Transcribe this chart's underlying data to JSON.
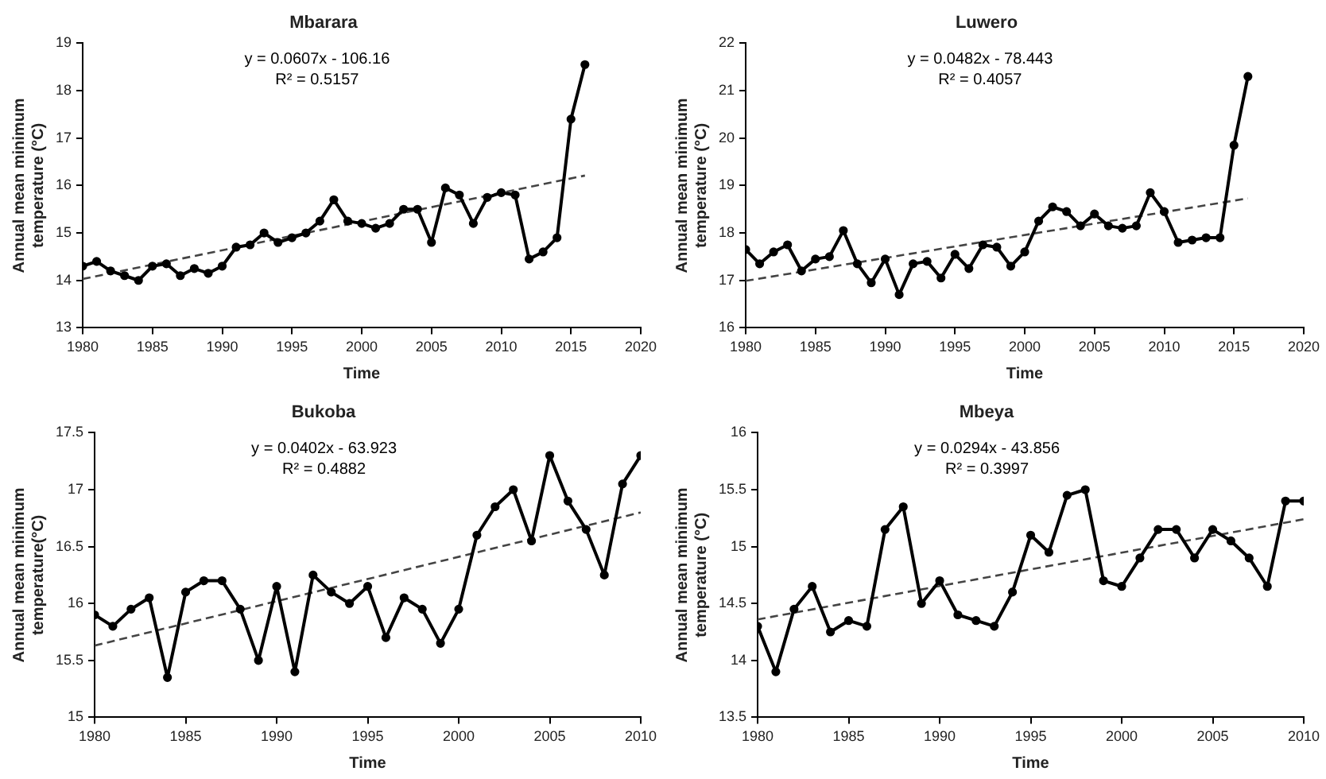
{
  "chart_data": [
    {
      "type": "line",
      "title": "Mbarara",
      "xlabel": "Time",
      "ylabel": "Annual mean minimum temperature (°C)",
      "xlim": [
        1980,
        2020
      ],
      "xticks": [
        1980,
        1985,
        1990,
        1995,
        2000,
        2005,
        2010,
        2015,
        2020
      ],
      "ylim": [
        13,
        19
      ],
      "yticks": [
        13,
        14,
        15,
        16,
        17,
        18,
        19
      ],
      "grid": false,
      "legend": false,
      "annotations": [
        "y = 0.0607x - 106.16",
        "R² = 0.5157"
      ],
      "series": [
        {
          "type": "line",
          "color": "#000000",
          "marker": "circle",
          "line_style": "solid",
          "x": [
            1980,
            1981,
            1982,
            1983,
            1984,
            1985,
            1986,
            1987,
            1988,
            1989,
            1990,
            1991,
            1992,
            1993,
            1994,
            1995,
            1996,
            1997,
            1998,
            1999,
            2000,
            2001,
            2002,
            2003,
            2004,
            2005,
            2006,
            2007,
            2008,
            2009,
            2010,
            2011,
            2012,
            2013,
            2014,
            2015,
            2016
          ],
          "values": [
            14.3,
            14.4,
            14.2,
            14.1,
            14.0,
            14.3,
            14.35,
            14.1,
            14.25,
            14.15,
            14.3,
            14.7,
            14.75,
            15.0,
            14.8,
            14.9,
            15.0,
            15.25,
            15.7,
            15.25,
            15.2,
            15.1,
            15.2,
            15.5,
            15.5,
            14.8,
            15.95,
            15.8,
            15.2,
            15.75,
            15.85,
            15.8,
            14.45,
            14.6,
            14.9,
            17.4,
            18.55
          ]
        },
        {
          "type": "line",
          "color": "#444444",
          "marker": "none",
          "line_style": "dashed",
          "x": [
            1980,
            2016
          ],
          "values": [
            14.03,
            16.21
          ]
        }
      ]
    },
    {
      "type": "line",
      "title": "Luwero",
      "xlabel": "Time",
      "ylabel": "Annual mean minimum temperature (°C)",
      "xlim": [
        1980,
        2020
      ],
      "xticks": [
        1980,
        1985,
        1990,
        1995,
        2000,
        2005,
        2010,
        2015,
        2020
      ],
      "ylim": [
        16,
        22
      ],
      "yticks": [
        16,
        17,
        18,
        19,
        20,
        21,
        22
      ],
      "grid": false,
      "legend": false,
      "annotations": [
        "y = 0.0482x - 78.443",
        "R² = 0.4057"
      ],
      "series": [
        {
          "type": "line",
          "color": "#000000",
          "marker": "circle",
          "line_style": "solid",
          "x": [
            1980,
            1981,
            1982,
            1983,
            1984,
            1985,
            1986,
            1987,
            1988,
            1989,
            1990,
            1991,
            1992,
            1993,
            1994,
            1995,
            1996,
            1997,
            1998,
            1999,
            2000,
            2001,
            2002,
            2003,
            2004,
            2005,
            2006,
            2007,
            2008,
            2009,
            2010,
            2011,
            2012,
            2013,
            2014,
            2015,
            2016
          ],
          "values": [
            17.65,
            17.35,
            17.6,
            17.75,
            17.2,
            17.45,
            17.5,
            18.05,
            17.35,
            16.95,
            17.45,
            16.7,
            17.35,
            17.4,
            17.05,
            17.55,
            17.25,
            17.75,
            17.7,
            17.3,
            17.6,
            18.25,
            18.55,
            18.45,
            18.15,
            18.4,
            18.15,
            18.1,
            18.15,
            18.85,
            18.45,
            17.8,
            17.85,
            17.9,
            17.9,
            19.85,
            21.3
          ]
        },
        {
          "type": "line",
          "color": "#444444",
          "marker": "none",
          "line_style": "dashed",
          "x": [
            1980,
            2016
          ],
          "values": [
            16.99,
            18.73
          ]
        }
      ]
    },
    {
      "type": "line",
      "title": "Bukoba",
      "xlabel": "Time",
      "ylabel": "Annual mean minimum temperature(°C)",
      "xlim": [
        1980,
        2010
      ],
      "xticks": [
        1980,
        1985,
        1990,
        1995,
        2000,
        2005,
        2010
      ],
      "ylim": [
        15,
        17.5
      ],
      "yticks": [
        15,
        15.5,
        16,
        16.5,
        17,
        17.5
      ],
      "grid": false,
      "legend": false,
      "annotations": [
        "y = 0.0402x - 63.923",
        "R² = 0.4882"
      ],
      "series": [
        {
          "type": "line",
          "color": "#000000",
          "marker": "circle",
          "line_style": "solid",
          "x": [
            1980,
            1981,
            1982,
            1983,
            1984,
            1985,
            1986,
            1987,
            1988,
            1989,
            1990,
            1991,
            1992,
            1993,
            1994,
            1995,
            1996,
            1997,
            1998,
            1999,
            2000,
            2001,
            2002,
            2003,
            2004,
            2005,
            2006,
            2007,
            2008,
            2009,
            2010
          ],
          "values": [
            15.9,
            15.8,
            15.95,
            16.05,
            15.35,
            16.1,
            16.2,
            16.2,
            15.95,
            15.5,
            16.15,
            15.4,
            16.25,
            16.1,
            16.0,
            16.15,
            15.7,
            16.05,
            15.95,
            15.65,
            15.95,
            16.6,
            16.85,
            17.0,
            16.55,
            17.3,
            16.9,
            16.65,
            16.25,
            17.05,
            17.3
          ]
        },
        {
          "type": "line",
          "color": "#444444",
          "marker": "none",
          "line_style": "dashed",
          "x": [
            1980,
            2010
          ],
          "values": [
            15.63,
            16.8
          ]
        }
      ]
    },
    {
      "type": "line",
      "title": "Mbeya",
      "xlabel": "Time",
      "ylabel": "Annual mean minimum temperature (°C)",
      "xlim": [
        1980,
        2010
      ],
      "xticks": [
        1980,
        1985,
        1990,
        1995,
        2000,
        2005,
        2010
      ],
      "ylim": [
        13.5,
        16
      ],
      "yticks": [
        13.5,
        14,
        14.5,
        15,
        15.5,
        16
      ],
      "grid": false,
      "legend": false,
      "annotations": [
        "y = 0.0294x - 43.856",
        "R² = 0.3997"
      ],
      "series": [
        {
          "type": "line",
          "color": "#000000",
          "marker": "circle",
          "line_style": "solid",
          "x": [
            1980,
            1981,
            1982,
            1983,
            1984,
            1985,
            1986,
            1987,
            1988,
            1989,
            1990,
            1991,
            1992,
            1993,
            1994,
            1995,
            1996,
            1997,
            1998,
            1999,
            2000,
            2001,
            2002,
            2003,
            2004,
            2005,
            2006,
            2007,
            2008,
            2009,
            2010
          ],
          "values": [
            14.3,
            13.9,
            14.45,
            14.65,
            14.25,
            14.35,
            14.3,
            15.15,
            15.35,
            14.5,
            14.7,
            14.4,
            14.35,
            14.3,
            14.6,
            15.1,
            14.95,
            15.45,
            15.5,
            14.7,
            14.65,
            14.9,
            15.15,
            15.15,
            14.9,
            15.15,
            15.05,
            14.9,
            14.65,
            15.4,
            15.4
          ]
        },
        {
          "type": "line",
          "color": "#444444",
          "marker": "none",
          "line_style": "dashed",
          "x": [
            1980,
            2010
          ],
          "values": [
            14.36,
            15.24
          ]
        }
      ]
    }
  ]
}
